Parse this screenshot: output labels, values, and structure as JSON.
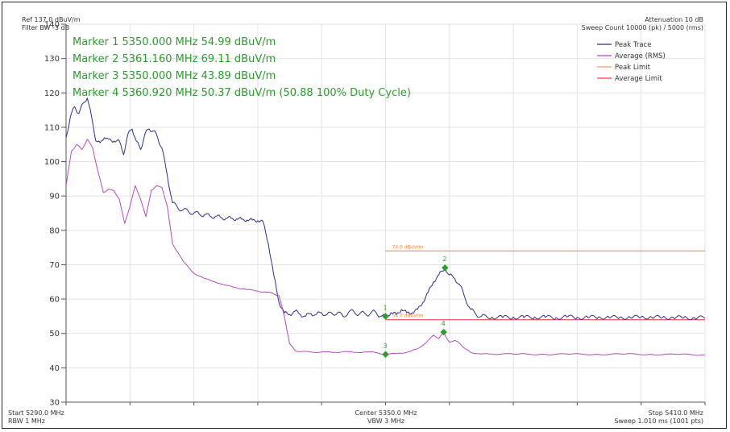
{
  "chart_data": {
    "type": "line",
    "title": "",
    "xlabel": "",
    "ylabel": "",
    "xlim": [
      5290,
      5410
    ],
    "ylim": [
      30,
      140
    ],
    "yticks": [
      30,
      40,
      50,
      60,
      70,
      80,
      90,
      100,
      110,
      120,
      130,
      140
    ],
    "grid": true,
    "legend_position": "top-right",
    "header_left": [
      "Ref 137.0 dBuV/m",
      "Filter BW -3 dB"
    ],
    "header_right": [
      "Attenuation 10 dB",
      "Sweep Count 10000 (pk) / 5000 (rms)"
    ],
    "footer_left": [
      "Start 5290.0 MHz",
      "RBW 1 MHz"
    ],
    "footer_center": [
      "Center 5350.0 MHz",
      "VBW 3 MHz"
    ],
    "footer_right": [
      "Stop 5410.0 MHz",
      "Sweep 1.010 ms (1001 pts)"
    ],
    "marker_readouts": [
      "Marker 1 5350.000 MHz 54.99 dBuV/m",
      "Marker 2 5361.160 MHz 69.11 dBuV/m",
      "Marker 3 5350.000 MHz 43.89 dBuV/m",
      "Marker 4 5360.920 MHz 50.37 dBuV/m (50.88 100% Duty Cycle)"
    ],
    "markers": [
      {
        "label": "1",
        "x": 5350.0,
        "y": 54.99
      },
      {
        "label": "2",
        "x": 5361.16,
        "y": 69.11
      },
      {
        "label": "3",
        "x": 5350.0,
        "y": 43.89
      },
      {
        "label": "4",
        "x": 5360.92,
        "y": 50.37
      }
    ],
    "limits": [
      {
        "name": "Peak Limit",
        "value": 74.0,
        "x_start": 5350,
        "x_end": 5410,
        "label": "74.0 dBuV/m",
        "color": "#f39a6a"
      },
      {
        "name": "Average Limit",
        "value": 54.0,
        "x_start": 5350,
        "x_end": 5410,
        "label": "54.0 dBuV/m",
        "color": "#e8484f"
      }
    ],
    "series": [
      {
        "name": "Peak Trace",
        "color": "#2b2f8a",
        "x": [
          5290,
          5290.8,
          5291.6,
          5292.4,
          5293.2,
          5294,
          5294.8,
          5295.6,
          5296.4,
          5297.2,
          5298,
          5299,
          5300,
          5300.8,
          5301.6,
          5302.4,
          5303.2,
          5304,
          5304.8,
          5305.6,
          5306.4,
          5307.2,
          5308,
          5309,
          5310,
          5311,
          5312,
          5313,
          5314,
          5315,
          5316,
          5317,
          5318,
          5319,
          5320,
          5321,
          5322,
          5323,
          5324,
          5325,
          5326,
          5327,
          5328,
          5329,
          5330,
          5331,
          5332,
          5333,
          5334,
          5335,
          5336,
          5337,
          5338,
          5339,
          5340,
          5341,
          5342,
          5343,
          5344,
          5345,
          5346,
          5347,
          5348,
          5349,
          5350,
          5351,
          5352,
          5353,
          5354,
          5355,
          5356,
          5357,
          5358,
          5359,
          5360,
          5361.16,
          5362,
          5363,
          5364,
          5365,
          5366,
          5367,
          5368,
          5370,
          5372,
          5374,
          5376,
          5378,
          5380,
          5382,
          5384,
          5386,
          5388,
          5390,
          5392,
          5394,
          5396,
          5398,
          5400,
          5402,
          5404,
          5406,
          5408,
          5410
        ],
        "y": [
          107,
          113,
          116,
          114,
          117,
          118.5,
          113,
          106,
          105.5,
          107,
          106.5,
          106,
          106,
          102,
          108,
          109.5,
          106,
          103.5,
          108,
          109.5,
          109,
          107,
          104,
          96,
          88,
          86.5,
          86,
          85.5,
          85,
          84.8,
          84.5,
          84.2,
          84,
          83.8,
          83.5,
          83.5,
          83.3,
          83.2,
          83,
          83,
          82.8,
          82.5,
          76,
          67,
          59,
          56,
          55.5,
          56.5,
          55.5,
          55,
          55.8,
          55.5,
          56,
          55.5,
          55.8,
          56,
          55,
          56,
          56.5,
          55.5,
          56,
          55.5,
          56.5,
          55,
          54.99,
          56,
          55.5,
          57,
          56,
          56,
          57,
          59,
          62,
          65,
          67,
          69.11,
          67,
          66,
          64,
          60,
          57,
          55.5,
          55,
          54.8,
          54.6,
          54.8,
          54.6,
          54.8,
          54.7,
          54.6,
          54.8,
          54.7,
          54.6,
          54.8,
          54.6,
          54.7,
          54.6,
          54.8,
          54.7,
          54.6,
          54.7,
          54.5,
          54.6,
          54.5
        ]
      },
      {
        "name": "Average (RMS)",
        "color": "#b44bc0",
        "x": [
          5290,
          5291,
          5292,
          5293,
          5294,
          5295,
          5296,
          5297,
          5298,
          5299,
          5300,
          5301,
          5302,
          5303,
          5304,
          5305,
          5306,
          5307,
          5308,
          5309,
          5310,
          5312,
          5314,
          5316,
          5318,
          5320,
          5322,
          5324,
          5326,
          5328,
          5329,
          5330,
          5331,
          5332,
          5333,
          5334,
          5336,
          5338,
          5340,
          5342,
          5344,
          5346,
          5348,
          5350,
          5352,
          5354,
          5356,
          5357,
          5358,
          5359,
          5360,
          5360.92,
          5361.5,
          5362,
          5363,
          5364,
          5365,
          5366,
          5368,
          5370,
          5375,
          5380,
          5385,
          5390,
          5395,
          5400,
          5405,
          5410
        ],
        "y": [
          93,
          103,
          105,
          103.5,
          106.5,
          104,
          97,
          91,
          92,
          91.5,
          89,
          82,
          87,
          93,
          89,
          84,
          91.5,
          93,
          92.5,
          87,
          76,
          71,
          67.5,
          66,
          65,
          64,
          63.3,
          62.8,
          62.3,
          62,
          61.5,
          61,
          55,
          47,
          45,
          44.7,
          44.6,
          44.6,
          44.5,
          44.7,
          44.5,
          44.6,
          44.5,
          43.89,
          44.2,
          44.5,
          45.5,
          46.5,
          48,
          49.5,
          48.5,
          50.37,
          48.5,
          47.5,
          48,
          47,
          45.5,
          44.5,
          44,
          44,
          44,
          43.9,
          44,
          43.9,
          44,
          43.9,
          43.9,
          43.8
        ]
      }
    ],
    "legend": [
      {
        "name": "Peak Trace",
        "color": "#2b2f8a"
      },
      {
        "name": "Average (RMS)",
        "color": "#b44bc0"
      },
      {
        "name": "Peak Limit",
        "color": "#f39a6a"
      },
      {
        "name": "Average Limit",
        "color": "#e8484f"
      }
    ],
    "colors": {
      "marker": "#2e9b2e",
      "grid": "#e3e3e3",
      "axis": "#555555"
    }
  }
}
